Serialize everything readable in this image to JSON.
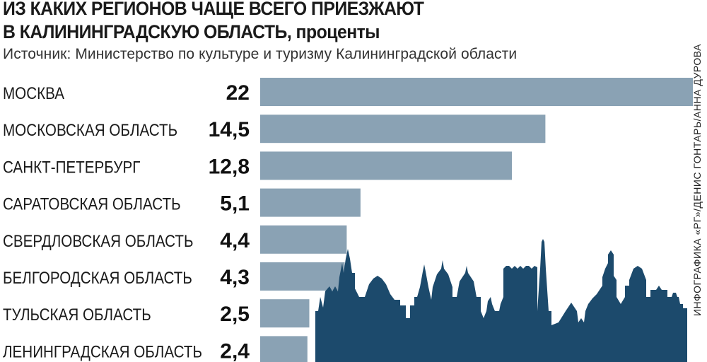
{
  "header": {
    "title_line1": "Из каких регионов чаще всего приезжают",
    "title_line2_caps": "в Калининградскую область,",
    "title_line2_rest": " проценты",
    "source": "Источник: Министерство по культуре и туризму Калининградской области"
  },
  "credit": "Инфографика «РГ»/Денис Гонтарь/Анна Дурова",
  "colors": {
    "bar": "#8aa2b4",
    "skyline": "#1c4a6c",
    "value_text": "#111111",
    "label_text": "#1a1a1a"
  },
  "decoration": {
    "skyline_icon": "kaliningrad-skyline-icon"
  },
  "chart_data": {
    "type": "bar",
    "orientation": "horizontal",
    "title": "Из каких регионов чаще всего приезжают в Калининградскую область, проценты",
    "categories": [
      "Москва",
      "Московская область",
      "Санкт-Петербург",
      "Саратовская область",
      "Свердловская область",
      "Белгородская область",
      "Тульская область",
      "Ленинградская область"
    ],
    "values": [
      22,
      14.5,
      12.8,
      5.1,
      4.4,
      4.3,
      2.5,
      2.4
    ],
    "value_labels": [
      "22",
      "14,5",
      "12,8",
      "5,1",
      "4,4",
      "4,3",
      "2,5",
      "2,4"
    ],
    "xlim": [
      0,
      22
    ],
    "grid": false,
    "legend": "none"
  }
}
